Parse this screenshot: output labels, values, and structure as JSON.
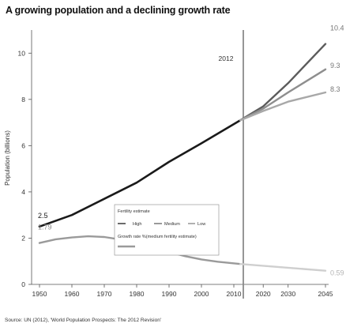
{
  "chart_data": {
    "type": "line",
    "title": "A growing population and a declining growth rate",
    "ylabel": "Population (billions)",
    "xlabel": "",
    "x_ticks": [
      "1950",
      "1960",
      "1970",
      "1980",
      "1990",
      "2000",
      "2010",
      "2020",
      "2030",
      "2045"
    ],
    "y_ticks": [
      "0",
      "2",
      "4",
      "6",
      "8",
      "10"
    ],
    "ylim": [
      0,
      11
    ],
    "divider_label": "2012",
    "source": "Source: UN (2012), 'World Population Prospects: The 2012 Revision'",
    "legend": {
      "title": "Fertility estimate",
      "items": [
        "High",
        "Medium",
        "Low"
      ],
      "growth_label": "Growth rate %(medium fertility estimate)",
      "placement": "bottom-center"
    },
    "series": [
      {
        "name": "Population",
        "color": "#1a1a1a",
        "points": [
          [
            1950,
            2.5
          ],
          [
            1960,
            3.0
          ],
          [
            1970,
            3.7
          ],
          [
            1980,
            4.4
          ],
          [
            1990,
            5.3
          ],
          [
            2000,
            6.1
          ],
          [
            2012,
            7.1
          ]
        ],
        "start_label": "2.5"
      },
      {
        "name": "Growth rate %(medium fertility estimate)",
        "color": "#9a9a9a",
        "points": [
          [
            1950,
            1.79
          ],
          [
            1955,
            1.95
          ],
          [
            1960,
            2.03
          ],
          [
            1965,
            2.08
          ],
          [
            1970,
            2.05
          ],
          [
            1975,
            1.94
          ],
          [
            1980,
            1.78
          ],
          [
            1985,
            1.6
          ],
          [
            1990,
            1.4
          ],
          [
            1995,
            1.22
          ],
          [
            2000,
            1.08
          ],
          [
            2005,
            0.98
          ],
          [
            2012,
            0.88
          ]
        ],
        "start_label": "1.79"
      },
      {
        "name": "Growth rate projection",
        "color": "#cfcfcf",
        "points": [
          [
            2012,
            0.88
          ],
          [
            2045,
            0.59
          ]
        ],
        "end_label": "0.59"
      },
      {
        "name": "High",
        "color": "#5c5c5c",
        "points": [
          [
            2012,
            7.1
          ],
          [
            2020,
            7.7
          ],
          [
            2030,
            8.7
          ],
          [
            2045,
            10.4
          ]
        ],
        "end_label": "10.4"
      },
      {
        "name": "Medium",
        "color": "#8e8e8e",
        "points": [
          [
            2012,
            7.1
          ],
          [
            2020,
            7.6
          ],
          [
            2030,
            8.3
          ],
          [
            2045,
            9.3
          ]
        ],
        "end_label": "9.3"
      },
      {
        "name": "Low",
        "color": "#a8a8a8",
        "points": [
          [
            2012,
            7.1
          ],
          [
            2020,
            7.5
          ],
          [
            2030,
            7.9
          ],
          [
            2045,
            8.3
          ]
        ],
        "end_label": "8.3"
      }
    ]
  }
}
